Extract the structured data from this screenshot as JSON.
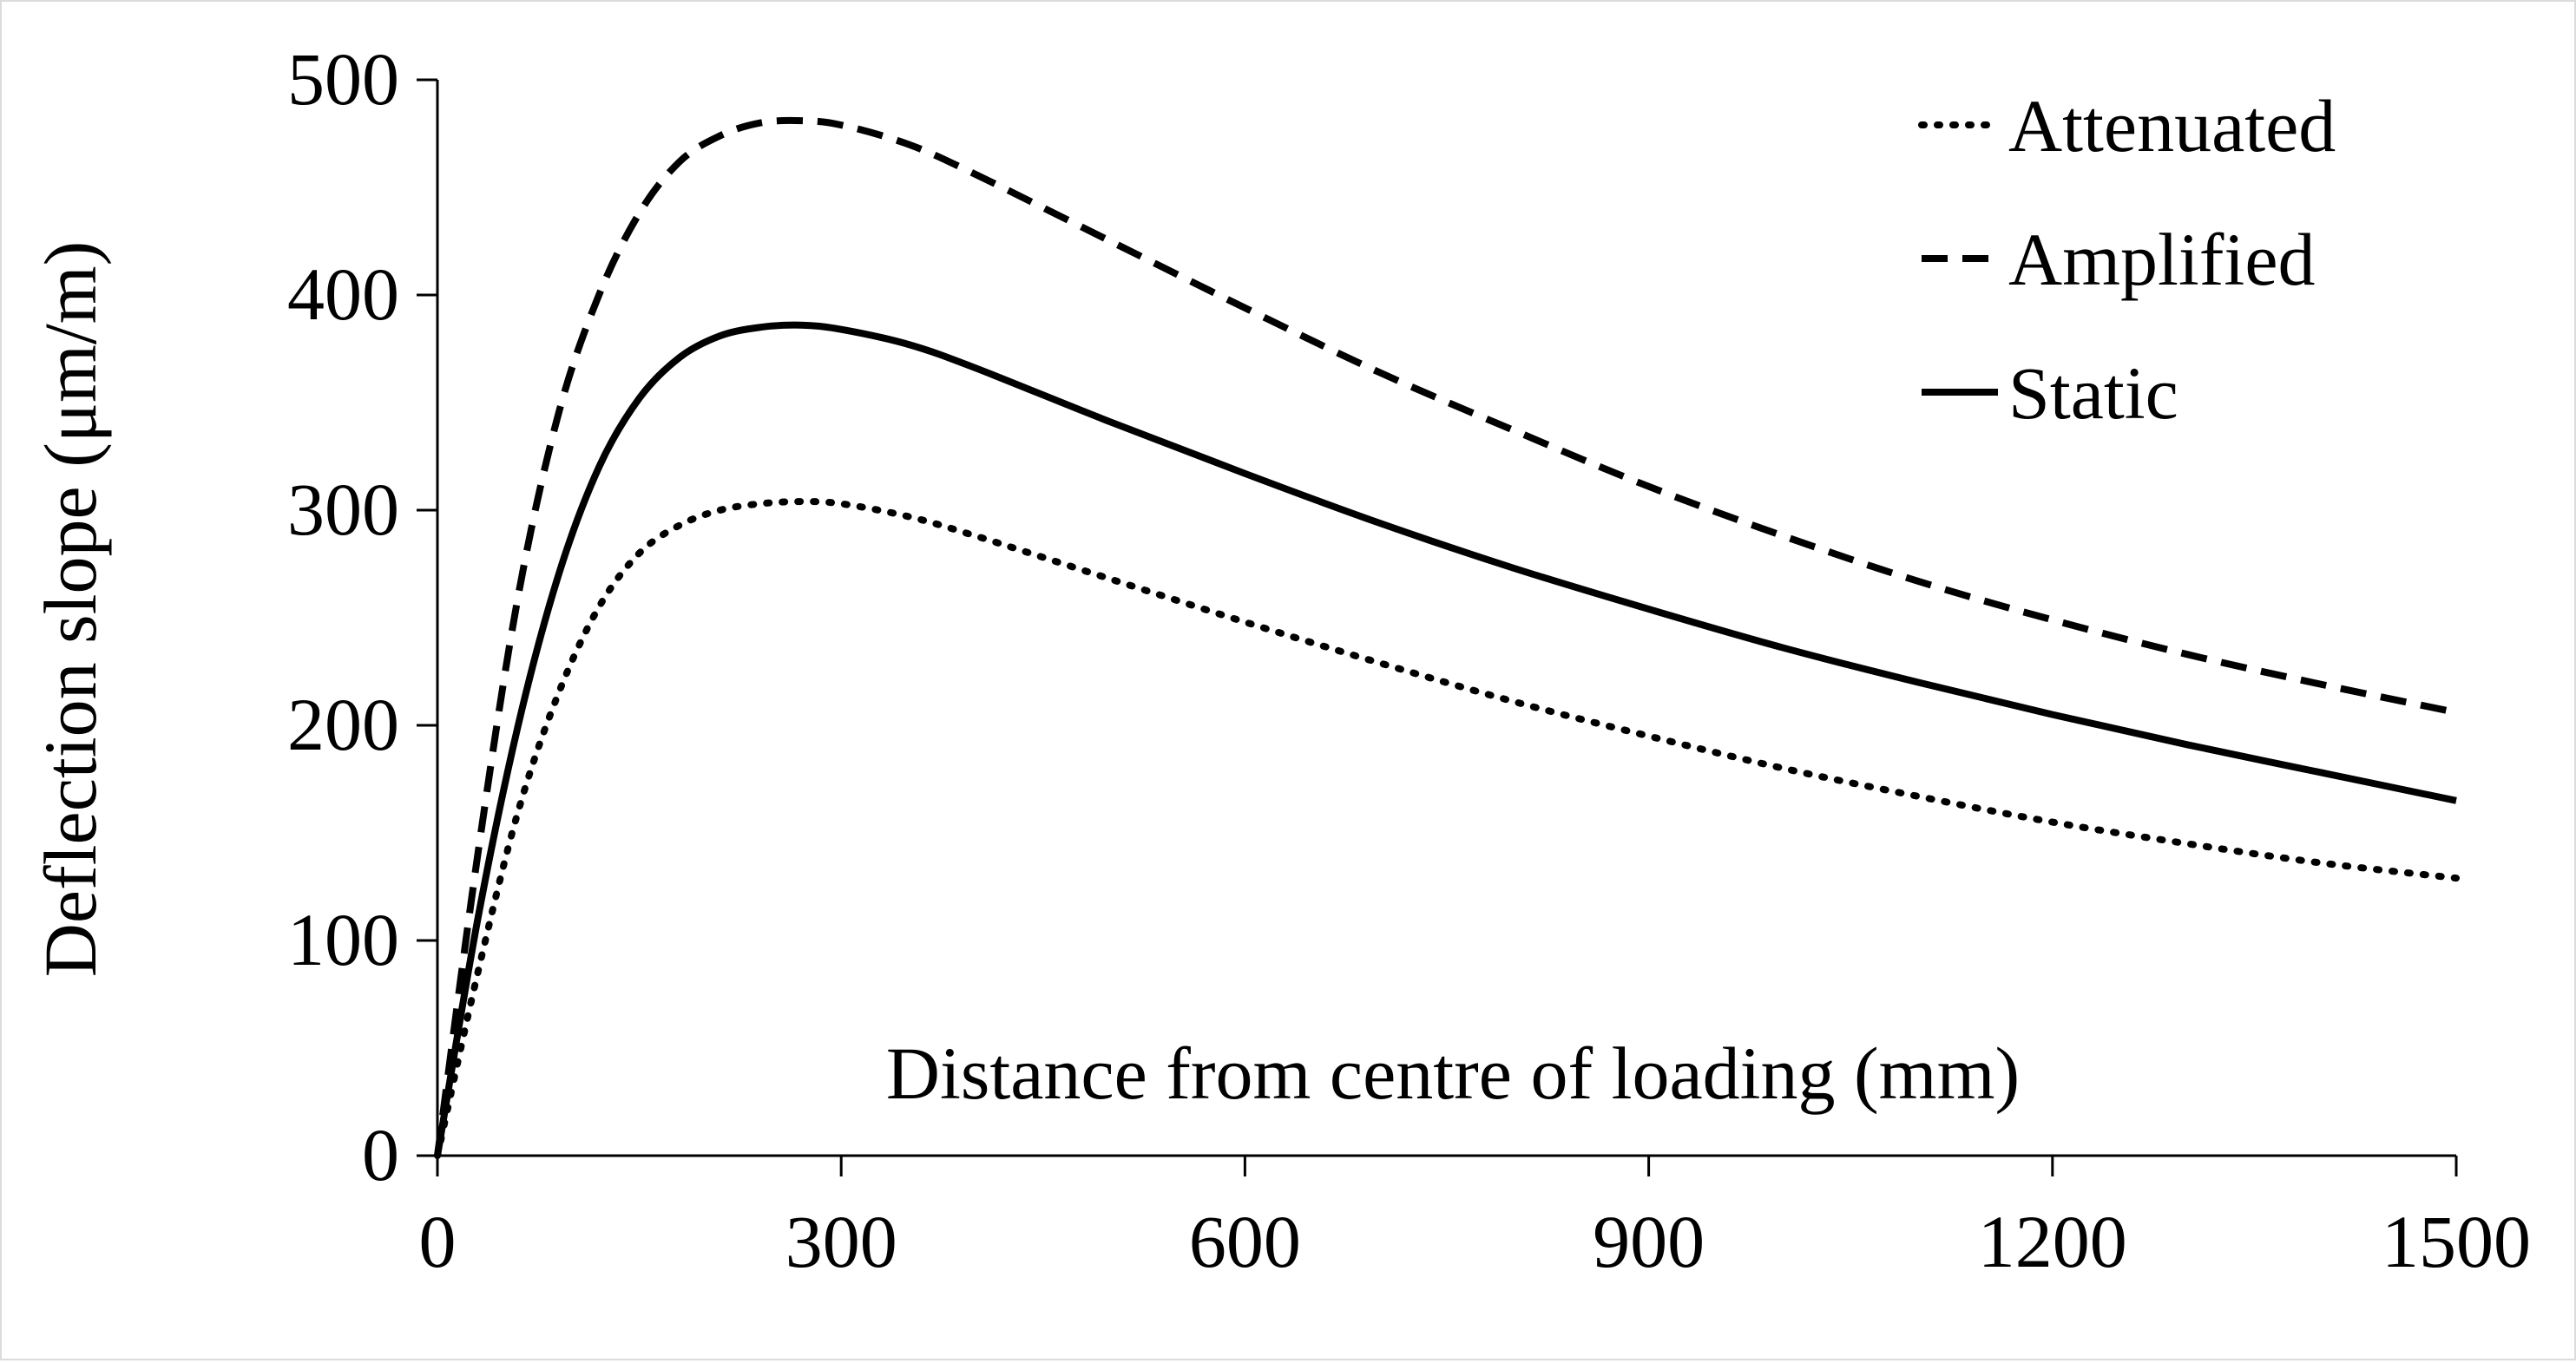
{
  "chart_data": {
    "type": "line",
    "xlabel": "Distance from centre of loading (mm)",
    "ylabel": "Deflection slope (μm/m)",
    "xlim": [
      0,
      1500
    ],
    "ylim": [
      0,
      500
    ],
    "xticks": [
      0,
      300,
      600,
      900,
      1200,
      1500
    ],
    "yticks": [
      0,
      100,
      200,
      300,
      400,
      500
    ],
    "xtick_labels": [
      "0",
      "300",
      "600",
      "900",
      "1200",
      "1500"
    ],
    "ytick_labels": [
      "0",
      "100",
      "200",
      "300",
      "400",
      "500"
    ],
    "grid": false,
    "legend_position": "top-right",
    "line_color": "#000000",
    "series": [
      {
        "name": "Attenuated",
        "style": "dotted",
        "x": [
          0,
          30,
          60,
          90,
          120,
          150,
          180,
          210,
          240,
          270,
          300,
          350,
          400,
          500,
          600,
          700,
          800,
          900,
          1000,
          1100,
          1200,
          1300,
          1400,
          1500
        ],
        "y": [
          0,
          85,
          160,
          215,
          255,
          280,
          293,
          300,
          303,
          304,
          303,
          297,
          288,
          268,
          248,
          229,
          211,
          195,
          180,
          167,
          155,
          145,
          136,
          129
        ]
      },
      {
        "name": "Amplified",
        "style": "dashed",
        "x": [
          0,
          30,
          60,
          90,
          120,
          150,
          180,
          210,
          240,
          270,
          300,
          350,
          400,
          500,
          600,
          700,
          800,
          900,
          1000,
          1100,
          1200,
          1300,
          1400,
          1500
        ],
        "y": [
          0,
          140,
          260,
          345,
          400,
          438,
          462,
          474,
          480,
          481,
          479,
          470,
          456,
          425,
          394,
          364,
          337,
          311,
          288,
          267,
          249,
          233,
          219,
          206
        ]
      },
      {
        "name": "Static",
        "style": "solid",
        "x": [
          0,
          30,
          60,
          90,
          120,
          150,
          180,
          210,
          240,
          270,
          300,
          350,
          400,
          500,
          600,
          700,
          800,
          900,
          1000,
          1100,
          1200,
          1300,
          1400,
          1500
        ],
        "y": [
          0,
          110,
          200,
          270,
          320,
          352,
          371,
          381,
          385,
          386,
          384,
          377,
          366,
          341,
          317,
          294,
          273,
          254,
          236,
          220,
          205,
          191,
          178,
          165
        ]
      }
    ]
  }
}
